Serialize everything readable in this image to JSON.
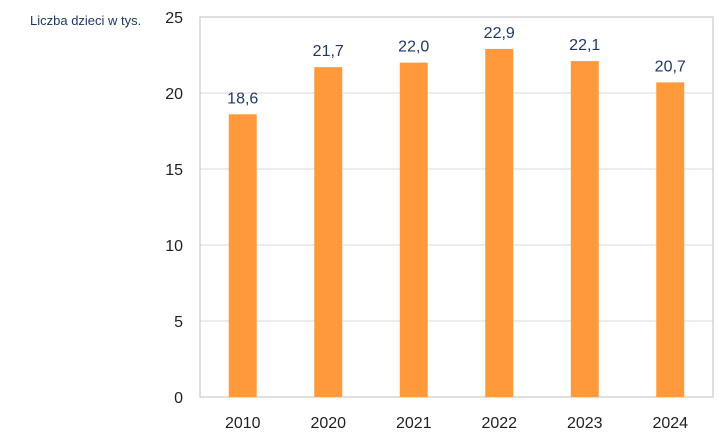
{
  "chart_data": {
    "type": "bar",
    "title": "",
    "xlabel": "",
    "ylabel": "Liczba dzieci w tys.",
    "categories": [
      "2010",
      "2020",
      "2021",
      "2022",
      "2023",
      "2024"
    ],
    "values": [
      18.6,
      21.7,
      22.0,
      22.9,
      22.1,
      20.7
    ],
    "data_labels": [
      "18,6",
      "21,7",
      "22,0",
      "22,9",
      "22,1",
      "20,7"
    ],
    "ylim": [
      0,
      25
    ],
    "yticks": [
      "0",
      "5",
      "10",
      "15",
      "20",
      "25"
    ],
    "grid": true,
    "legend": "none",
    "colors": {
      "bar": "#ff9a3c",
      "grid": "#d9d9d9",
      "frame": "#bfbfbf",
      "ylabel": "#1f3864",
      "data_label": "#1f3864",
      "tick": "#1f1f1f"
    }
  }
}
